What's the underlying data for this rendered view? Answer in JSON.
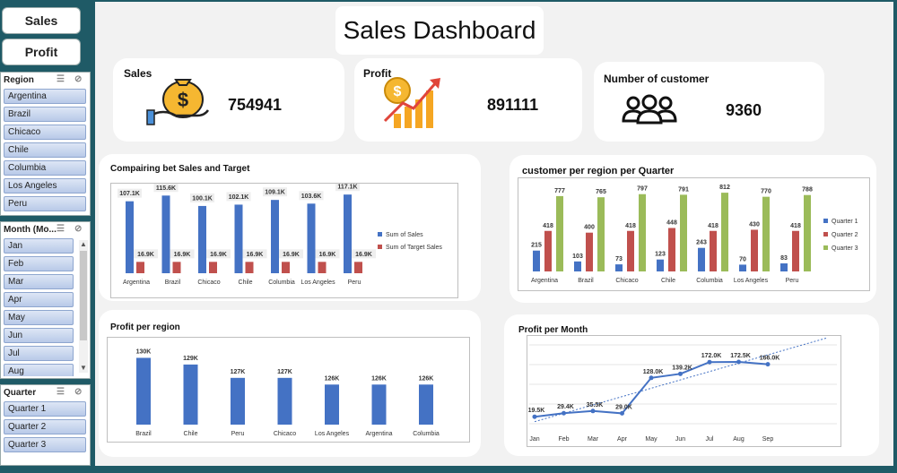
{
  "nav": {
    "sales_label": "Sales",
    "profit_label": "Profit"
  },
  "slicers": {
    "region": {
      "title": "Region",
      "items": [
        "Argentina",
        "Brazil",
        "Chicaco",
        "Chile",
        "Columbia",
        "Los Angeles",
        "Peru"
      ]
    },
    "month": {
      "title": "Month (Mo...",
      "items": [
        "Jan",
        "Feb",
        "Mar",
        "Apr",
        "May",
        "Jun",
        "Jul",
        "Aug"
      ]
    },
    "quarter": {
      "title": "Quarter",
      "items": [
        "Quarter 1",
        "Quarter 2",
        "Quarter 3"
      ]
    }
  },
  "dashboard": {
    "title": "Sales Dashboard"
  },
  "kpis": {
    "sales": {
      "label": "Sales",
      "value": "754941"
    },
    "profit": {
      "label": "Profit",
      "value": "891111"
    },
    "customers": {
      "label": "Number of customer",
      "value": "9360"
    }
  },
  "chart_data": [
    {
      "type": "bar",
      "title": "Compairing bet Sales and Target",
      "categories": [
        "Argentina",
        "Brazil",
        "Chicaco",
        "Chile",
        "Columbia",
        "Los Angeles",
        "Peru"
      ],
      "series": [
        {
          "name": "Sum of Sales",
          "values": [
            107.1,
            115.6,
            100.1,
            102.1,
            109.1,
            103.6,
            117.1
          ],
          "labels": [
            "107.1K",
            "115.6K",
            "100.1K",
            "102.1K",
            "109.1K",
            "103.6K",
            "117.1K"
          ],
          "color": "#4472c4"
        },
        {
          "name": "Sum of Target Sales",
          "values": [
            16.9,
            16.9,
            16.9,
            16.9,
            16.9,
            16.9,
            16.9
          ],
          "labels": [
            "16.9K",
            "16.9K",
            "16.9K",
            "16.9K",
            "16.9K",
            "16.9K",
            "16.9K"
          ],
          "color": "#c0504d"
        }
      ],
      "ylim": [
        0,
        120
      ],
      "legend": "right"
    },
    {
      "type": "bar",
      "title": "customer per region per Quarter",
      "categories": [
        "Argentina",
        "Brazil",
        "Chicaco",
        "Chile",
        "Columbia",
        "Los Angeles",
        "Peru"
      ],
      "series": [
        {
          "name": "Quarter 1",
          "values": [
            215,
            103,
            73,
            123,
            243,
            70,
            83
          ],
          "color": "#4472c4"
        },
        {
          "name": "Quarter 2",
          "values": [
            418,
            400,
            418,
            448,
            418,
            430,
            418
          ],
          "color": "#c0504d"
        },
        {
          "name": "Quarter 3",
          "values": [
            777,
            765,
            797,
            791,
            812,
            770,
            788
          ],
          "color": "#9bbb59"
        }
      ],
      "ylim": [
        0,
        850
      ],
      "legend": "right"
    },
    {
      "type": "bar",
      "title": "Profit per region",
      "categories": [
        "Brazil",
        "Chile",
        "Peru",
        "Chicaco",
        "Los Angeles",
        "Argentina",
        "Columbia"
      ],
      "values": [
        130,
        129,
        127,
        127,
        126,
        126,
        126
      ],
      "labels": [
        "130K",
        "129K",
        "127K",
        "127K",
        "126K",
        "126K",
        "126K"
      ],
      "color": "#4472c4"
    },
    {
      "type": "line",
      "title": "Profit per Month",
      "categories": [
        "Jan",
        "Feb",
        "Mar",
        "Apr",
        "May",
        "Jun",
        "Jul",
        "Aug",
        "Sep"
      ],
      "values": [
        19.5,
        29.4,
        35.5,
        29.0,
        128.0,
        139.2,
        172.0,
        172.5,
        166.0
      ],
      "labels": [
        "19.5K",
        "29.4K",
        "35.5K",
        "29.0K",
        "128.0K",
        "139.2K",
        "172.0K",
        "172.5K",
        "166.0K"
      ],
      "trendline": "linear",
      "color": "#4472c4",
      "grid": true
    }
  ]
}
